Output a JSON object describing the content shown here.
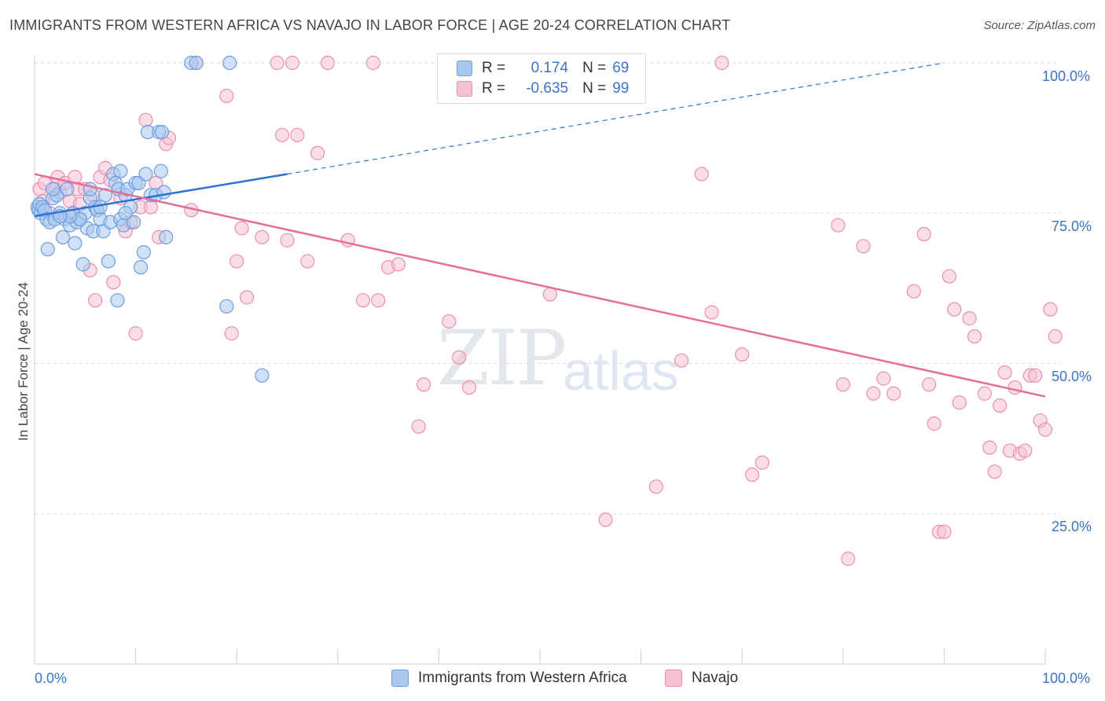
{
  "header": {
    "title": "IMMIGRANTS FROM WESTERN AFRICA VS NAVAJO IN LABOR FORCE | AGE 20-24 CORRELATION CHART",
    "source": "Source: ZipAtlas.com"
  },
  "watermark": {
    "zip": "ZIP",
    "atlas": "atlas"
  },
  "legend": {
    "rows": [
      {
        "r_label": "R =",
        "r_value": "0.174",
        "n_label": "N =",
        "n_value": "69"
      },
      {
        "r_label": "R =",
        "r_value": "-0.635",
        "n_label": "N =",
        "n_value": "99"
      }
    ]
  },
  "colors": {
    "blue_fill": "#a9c8f0",
    "blue_stroke": "#6a9fe0",
    "blue_line": "#2f72d1",
    "pink_fill": "#f6c1d2",
    "pink_stroke": "#ea8fae",
    "pink_line": "#e56e9a",
    "axis_text": "#3b73c9",
    "grid": "#dcdcdc"
  },
  "chart_data": {
    "type": "scatter",
    "title": "IMMIGRANTS FROM WESTERN AFRICA VS NAVAJO IN LABOR FORCE | AGE 20-24 CORRELATION CHART",
    "xlabel": "",
    "ylabel": "In Labor Force | Age 20-24",
    "xlim": [
      0,
      100
    ],
    "ylim": [
      0,
      102
    ],
    "x_tick_labels": [
      "0.0%",
      "100.0%"
    ],
    "y_ticks": [
      25,
      50,
      75,
      100
    ],
    "y_tick_labels": [
      "25.0%",
      "50.0%",
      "75.0%",
      "100.0%"
    ],
    "grid": true,
    "legend_position": "bottom-center",
    "series": [
      {
        "name": "Immigrants from Western Africa",
        "color": "#6a9fe0",
        "trend": {
          "x": [
            0,
            25,
            90
          ],
          "y": [
            74.5,
            81.5,
            100
          ]
        },
        "points": [
          [
            0.3,
            76
          ],
          [
            0.4,
            75.5
          ],
          [
            0.6,
            75
          ],
          [
            0.5,
            76.5
          ],
          [
            0.8,
            76
          ],
          [
            1.0,
            75.5
          ],
          [
            1.2,
            74
          ],
          [
            1.5,
            73.5
          ],
          [
            1.3,
            69
          ],
          [
            1.8,
            77.5
          ],
          [
            2.0,
            74
          ],
          [
            2.2,
            78
          ],
          [
            2.5,
            75
          ],
          [
            2.8,
            71
          ],
          [
            3.0,
            74
          ],
          [
            3.2,
            79
          ],
          [
            3.5,
            73
          ],
          [
            3.8,
            75
          ],
          [
            4.0,
            70
          ],
          [
            4.2,
            73.5
          ],
          [
            4.5,
            74
          ],
          [
            4.8,
            66.5
          ],
          [
            5.0,
            75
          ],
          [
            5.2,
            72.5
          ],
          [
            5.5,
            77.5
          ],
          [
            5.8,
            72
          ],
          [
            6.0,
            76
          ],
          [
            6.2,
            75.5
          ],
          [
            6.5,
            74
          ],
          [
            6.8,
            72
          ],
          [
            7.0,
            78
          ],
          [
            7.3,
            67
          ],
          [
            7.5,
            73.5
          ],
          [
            7.8,
            81.5
          ],
          [
            8.0,
            80
          ],
          [
            8.3,
            79
          ],
          [
            8.5,
            74
          ],
          [
            8.8,
            73
          ],
          [
            9.0,
            78
          ],
          [
            9.2,
            79
          ],
          [
            9.5,
            76
          ],
          [
            9.8,
            73.5
          ],
          [
            10.0,
            80
          ],
          [
            10.3,
            80
          ],
          [
            10.5,
            66
          ],
          [
            10.8,
            68.5
          ],
          [
            11.0,
            81.5
          ],
          [
            11.2,
            88.5
          ],
          [
            11.5,
            78
          ],
          [
            12.0,
            78
          ],
          [
            12.3,
            88.5
          ],
          [
            12.6,
            88.5
          ],
          [
            12.8,
            78.5
          ],
          [
            13.0,
            71
          ],
          [
            12.5,
            82
          ],
          [
            8.2,
            60.5
          ],
          [
            9.0,
            75
          ],
          [
            5.5,
            79
          ],
          [
            6.5,
            76
          ],
          [
            4.5,
            74
          ],
          [
            3.5,
            74.5
          ],
          [
            2.5,
            74.5
          ],
          [
            15.5,
            100
          ],
          [
            16.0,
            100
          ],
          [
            19.0,
            59.5
          ],
          [
            19.3,
            100
          ],
          [
            22.5,
            48
          ],
          [
            8.5,
            82
          ],
          [
            1.8,
            79
          ]
        ]
      },
      {
        "name": "Navajo",
        "color": "#ea8fae",
        "trend": {
          "x": [
            0,
            100
          ],
          "y": [
            81.5,
            44.5
          ]
        },
        "points": [
          [
            0.5,
            79
          ],
          [
            0.8,
            77
          ],
          [
            1.0,
            80
          ],
          [
            1.5,
            75
          ],
          [
            2.0,
            79
          ],
          [
            2.3,
            81
          ],
          [
            2.5,
            78.5
          ],
          [
            3.0,
            80
          ],
          [
            3.5,
            77
          ],
          [
            3.8,
            75
          ],
          [
            4.0,
            81
          ],
          [
            4.3,
            79
          ],
          [
            4.5,
            76.5
          ],
          [
            5.0,
            79
          ],
          [
            5.5,
            65.5
          ],
          [
            5.8,
            78
          ],
          [
            6.0,
            60.5
          ],
          [
            6.5,
            81
          ],
          [
            7.0,
            82.5
          ],
          [
            7.5,
            80.5
          ],
          [
            7.8,
            63.5
          ],
          [
            8.5,
            77.5
          ],
          [
            9.0,
            72
          ],
          [
            9.5,
            73.5
          ],
          [
            10.0,
            55
          ],
          [
            10.5,
            76
          ],
          [
            11.0,
            90.5
          ],
          [
            11.5,
            76
          ],
          [
            12.0,
            80
          ],
          [
            12.3,
            71
          ],
          [
            13.0,
            86.5
          ],
          [
            13.3,
            87.5
          ],
          [
            15.5,
            75.5
          ],
          [
            16.0,
            100
          ],
          [
            19.0,
            94.5
          ],
          [
            19.5,
            55
          ],
          [
            20.0,
            67
          ],
          [
            20.5,
            72.5
          ],
          [
            21.0,
            61
          ],
          [
            22.5,
            71
          ],
          [
            24.0,
            100
          ],
          [
            24.5,
            88
          ],
          [
            25.0,
            70.5
          ],
          [
            25.5,
            100
          ],
          [
            26.0,
            88
          ],
          [
            27.0,
            67
          ],
          [
            28.0,
            85
          ],
          [
            29.0,
            100
          ],
          [
            31.0,
            70.5
          ],
          [
            32.5,
            60.5
          ],
          [
            33.5,
            100
          ],
          [
            34.0,
            60.5
          ],
          [
            35.0,
            66
          ],
          [
            36.0,
            66.5
          ],
          [
            38.5,
            46.5
          ],
          [
            38.0,
            39.5
          ],
          [
            41.0,
            57
          ],
          [
            42.0,
            51
          ],
          [
            43.0,
            46
          ],
          [
            46.0,
            100
          ],
          [
            51.0,
            61.5
          ],
          [
            51.5,
            100
          ],
          [
            56.5,
            24
          ],
          [
            58.0,
            100
          ],
          [
            59.5,
            100
          ],
          [
            61.5,
            29.5
          ],
          [
            64.0,
            50.5
          ],
          [
            66.0,
            81.5
          ],
          [
            67.0,
            58.5
          ],
          [
            68.0,
            100
          ],
          [
            70.0,
            51.5
          ],
          [
            71.0,
            31.5
          ],
          [
            72.0,
            33.5
          ],
          [
            79.5,
            73
          ],
          [
            80.0,
            46.5
          ],
          [
            80.5,
            17.5
          ],
          [
            82.0,
            69.5
          ],
          [
            83.0,
            45
          ],
          [
            84.0,
            47.5
          ],
          [
            85.0,
            45
          ],
          [
            87.0,
            62
          ],
          [
            88.0,
            71.5
          ],
          [
            88.5,
            46.5
          ],
          [
            89.0,
            40
          ],
          [
            89.5,
            22
          ],
          [
            90.0,
            22
          ],
          [
            90.5,
            64.5
          ],
          [
            91.0,
            59
          ],
          [
            91.5,
            43.5
          ],
          [
            92.5,
            57.5
          ],
          [
            93.0,
            54.5
          ],
          [
            94.0,
            45
          ],
          [
            94.5,
            36
          ],
          [
            95.0,
            32
          ],
          [
            95.5,
            43
          ],
          [
            96.0,
            48.5
          ],
          [
            96.5,
            35.5
          ],
          [
            97.0,
            46
          ],
          [
            97.5,
            35
          ],
          [
            98.0,
            35.5
          ],
          [
            98.5,
            48
          ],
          [
            99.0,
            48
          ],
          [
            99.5,
            40.5
          ],
          [
            100.0,
            39
          ],
          [
            100.5,
            59
          ],
          [
            101.0,
            54.5
          ]
        ]
      }
    ]
  },
  "bottom_legend": {
    "items": [
      {
        "label": "Immigrants from Western Africa"
      },
      {
        "label": "Navajo"
      }
    ]
  }
}
